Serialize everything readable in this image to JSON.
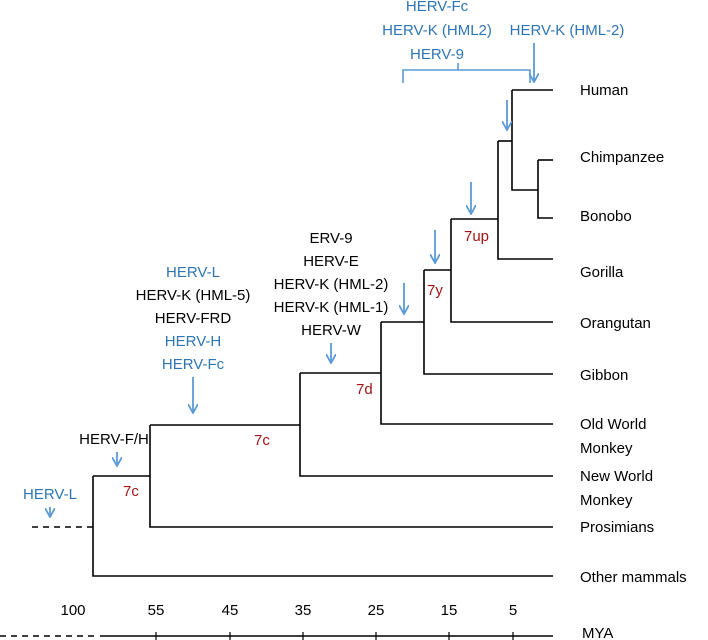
{
  "taxa": {
    "human": "Human",
    "chimpanzee": "Chimpanzee",
    "bonobo": "Bonobo",
    "gorilla": "Gorilla",
    "orangutan": "Orangutan",
    "gibbon": "Gibbon",
    "old_world_1": "Old World",
    "old_world_2": "Monkey",
    "new_world_1": "New World",
    "new_world_2": "Monkey",
    "prosimians": "Prosimians",
    "other_mammals": "Other mammals"
  },
  "node_labels": {
    "n_7c_root": "7c",
    "n_7c": "7c",
    "n_7d": "7d",
    "n_7y": "7y",
    "n_7up": "7up"
  },
  "events": {
    "root": [
      "HERV-L"
    ],
    "prosimian_split": [
      "HERV-F/H"
    ],
    "catarrhine_stem": [
      "HERV-L",
      "HERV-K (HML-5)",
      "HERV-FRD",
      "HERV-H",
      "HERV-Fc"
    ],
    "old_world_stem": [
      "ERV-9",
      "HERV-E",
      "HERV-K (HML-2)",
      "HERV-K (HML-1)",
      "HERV-W"
    ],
    "human_chimp_brace": [
      "HERV-Fc",
      "HERV-K (HML2)",
      "HERV-9"
    ],
    "human_lineage": [
      "HERV-K (HML-2)"
    ]
  },
  "event_colors": {
    "root": [
      "blue"
    ],
    "prosimian_split": [
      "black"
    ],
    "catarrhine_stem": [
      "blue",
      "black",
      "black",
      "blue",
      "blue"
    ],
    "old_world_stem": [
      "black",
      "black",
      "black",
      "black",
      "black"
    ],
    "human_chimp_brace": [
      "blue",
      "blue",
      "blue"
    ],
    "human_lineage": [
      "blue"
    ]
  },
  "axis": {
    "ticks": [
      "100",
      "55",
      "45",
      "35",
      "25",
      "15",
      "5"
    ],
    "unit_label": "MYA"
  },
  "colors": {
    "branch": "#000000",
    "arrow": "#5b9bd5",
    "event_blue": "#2e75b6",
    "event_black": "#000000",
    "node_label": "#a31515"
  }
}
